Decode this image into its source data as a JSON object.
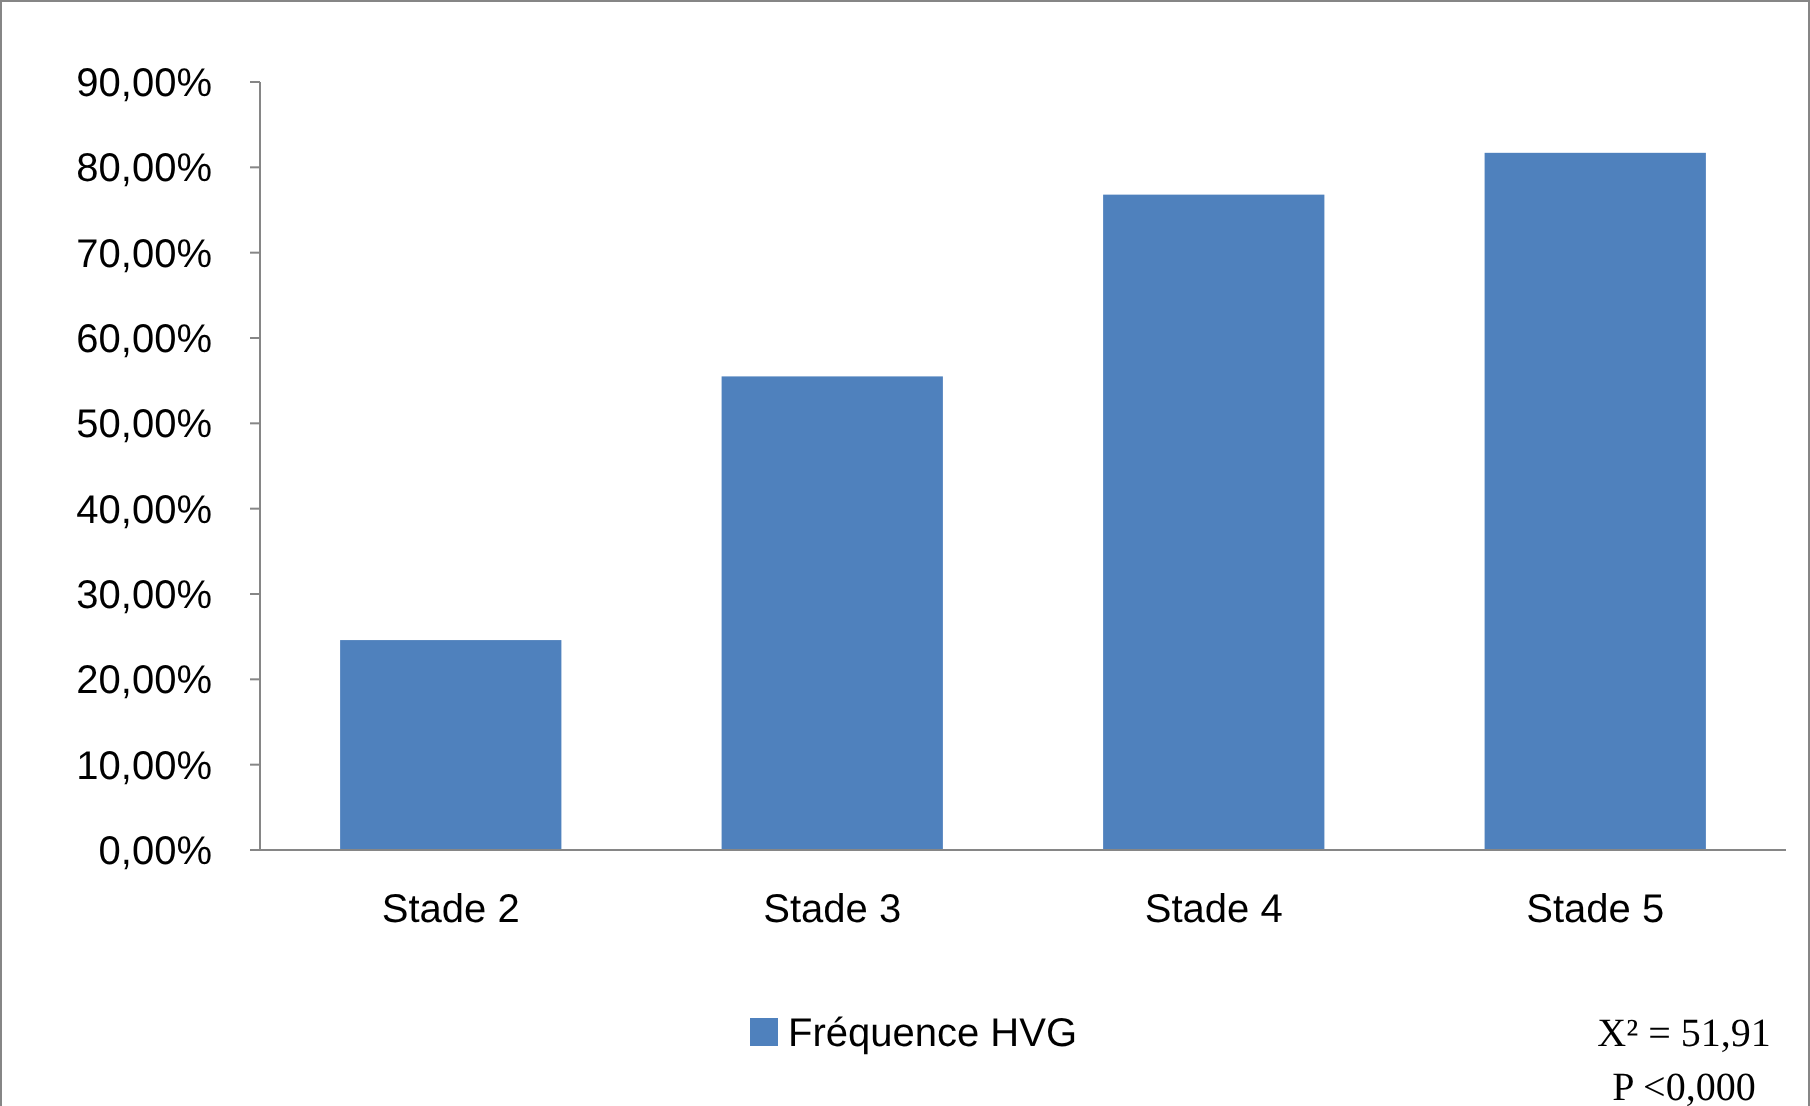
{
  "chart_data": {
    "type": "bar",
    "categories": [
      "Stade 2",
      "Stade 3",
      "Stade 4",
      "Stade 5"
    ],
    "series": [
      {
        "name": "Fréquence HVG",
        "color": "#4f81bd",
        "values": [
          24.6,
          55.5,
          76.8,
          81.7
        ]
      }
    ],
    "ylim": [
      0,
      90
    ],
    "yticks": [
      {
        "value": 0,
        "label": "0,00%"
      },
      {
        "value": 10,
        "label": "10,00%"
      },
      {
        "value": 20,
        "label": "20,00%"
      },
      {
        "value": 30,
        "label": "30,00%"
      },
      {
        "value": 40,
        "label": "40,00%"
      },
      {
        "value": 50,
        "label": "50,00%"
      },
      {
        "value": 60,
        "label": "60,00%"
      },
      {
        "value": 70,
        "label": "70,00%"
      },
      {
        "value": 80,
        "label": "80,00%"
      },
      {
        "value": 90,
        "label": "90,00%"
      }
    ],
    "grid": false,
    "legend": "bottom",
    "annotations": [
      "X² = 51,91",
      "P <0,000"
    ]
  }
}
